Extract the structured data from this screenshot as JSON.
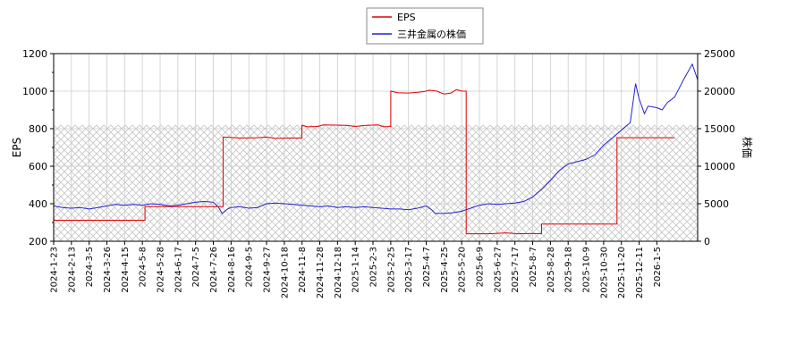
{
  "chart_data": {
    "type": "line",
    "legend": {
      "placement": "top-center",
      "items": [
        {
          "label": "EPS",
          "color": "#dd0000"
        },
        {
          "label": "三井金属の株価",
          "color": "#2222cc"
        }
      ]
    },
    "ylabel_left": "EPS",
    "ylabel_right": "株価",
    "ylim_left": [
      200,
      1200
    ],
    "ylim_right": [
      0,
      25000
    ],
    "yticks_left": [
      "200",
      "400",
      "600",
      "800",
      "1000",
      "1200"
    ],
    "yticks_right": [
      "0",
      "5000",
      "10000",
      "15000",
      "20000",
      "25000"
    ],
    "x_ticks": [
      "2024-1-23",
      "2024-2-13",
      "2024-3-5",
      "2024-3-26",
      "2024-4-15",
      "2024-5-8",
      "2024-5-28",
      "2024-6-17",
      "2024-7-5",
      "2024-7-26",
      "2024-8-16",
      "2024-9-5",
      "2024-9-27",
      "2024-10-18",
      "2024-11-8",
      "2024-11-28",
      "2024-12-18",
      "2025-1-14",
      "2025-2-3",
      "2025-2-25",
      "2025-3-17",
      "2025-4-7",
      "2025-4-25",
      "2025-5-20",
      "2025-6-9",
      "2025-6-27",
      "2025-7-17",
      "2025-8-7",
      "2025-8-28",
      "2025-9-18",
      "2025-10-9",
      "2025-10-30",
      "2025-11-20",
      "2025-12-11",
      "2026-1-5"
    ],
    "grid": true,
    "hatched_band_right": [
      0,
      15500
    ],
    "series": [
      {
        "name": "EPS",
        "axis": "left",
        "color": "#dd0000",
        "points": [
          [
            0,
            312
          ],
          [
            5.15,
            312
          ],
          [
            5.15,
            385
          ],
          [
            9.55,
            385
          ],
          [
            9.55,
            755
          ],
          [
            10.5,
            750
          ],
          [
            11.5,
            752
          ],
          [
            12.0,
            755
          ],
          [
            12.5,
            748
          ],
          [
            13.2,
            750
          ],
          [
            13.99,
            750
          ],
          [
            13.99,
            818
          ],
          [
            14.3,
            810
          ],
          [
            14.9,
            812
          ],
          [
            15.2,
            820
          ],
          [
            16.5,
            818
          ],
          [
            17.0,
            812
          ],
          [
            17.6,
            818
          ],
          [
            18.3,
            820
          ],
          [
            18.6,
            810
          ],
          [
            19.0,
            812
          ],
          [
            19.0,
            1000
          ],
          [
            19.4,
            992
          ],
          [
            20.0,
            990
          ],
          [
            20.6,
            995
          ],
          [
            20.9,
            998
          ],
          [
            21.2,
            1005
          ],
          [
            21.6,
            1000
          ],
          [
            22.0,
            985
          ],
          [
            22.4,
            990
          ],
          [
            22.7,
            1008
          ],
          [
            23.0,
            1000
          ],
          [
            23.25,
            1000
          ],
          [
            23.25,
            240
          ],
          [
            24.5,
            240
          ],
          [
            25.5,
            245
          ],
          [
            26.2,
            240
          ],
          [
            27.0,
            242
          ],
          [
            27.5,
            240
          ],
          [
            27.5,
            292
          ],
          [
            31.75,
            292
          ],
          [
            31.75,
            752
          ],
          [
            35,
            752
          ]
        ]
      },
      {
        "name": "三井金属の株価",
        "axis": "right",
        "color": "#2222cc",
        "points": [
          [
            0,
            4700
          ],
          [
            0.5,
            4500
          ],
          [
            1,
            4400
          ],
          [
            1.5,
            4500
          ],
          [
            2,
            4300
          ],
          [
            2.5,
            4500
          ],
          [
            3,
            4700
          ],
          [
            3.5,
            4900
          ],
          [
            4,
            4800
          ],
          [
            4.5,
            4900
          ],
          [
            5,
            4800
          ],
          [
            5.5,
            5000
          ],
          [
            6,
            4900
          ],
          [
            6.5,
            4700
          ],
          [
            7,
            4800
          ],
          [
            7.5,
            5000
          ],
          [
            8,
            5200
          ],
          [
            8.5,
            5300
          ],
          [
            9,
            5200
          ],
          [
            9.3,
            4500
          ],
          [
            9.5,
            3700
          ],
          [
            9.8,
            4300
          ],
          [
            10,
            4500
          ],
          [
            10.5,
            4600
          ],
          [
            11,
            4400
          ],
          [
            11.5,
            4500
          ],
          [
            12,
            5000
          ],
          [
            12.5,
            5100
          ],
          [
            13,
            5000
          ],
          [
            13.5,
            4900
          ],
          [
            14,
            4800
          ],
          [
            14.5,
            4700
          ],
          [
            15,
            4600
          ],
          [
            15.5,
            4700
          ],
          [
            16,
            4500
          ],
          [
            16.5,
            4600
          ],
          [
            17,
            4500
          ],
          [
            17.5,
            4600
          ],
          [
            18,
            4500
          ],
          [
            18.5,
            4400
          ],
          [
            19,
            4300
          ],
          [
            19.5,
            4300
          ],
          [
            20,
            4200
          ],
          [
            20.5,
            4400
          ],
          [
            21,
            4700
          ],
          [
            21.3,
            4200
          ],
          [
            21.5,
            3700
          ],
          [
            22,
            3700
          ],
          [
            22.5,
            3800
          ],
          [
            23,
            4000
          ],
          [
            23.5,
            4400
          ],
          [
            24,
            4800
          ],
          [
            24.5,
            5000
          ],
          [
            25,
            4900
          ],
          [
            25.5,
            5000
          ],
          [
            26,
            5100
          ],
          [
            26.5,
            5300
          ],
          [
            27,
            5900
          ],
          [
            27.5,
            6900
          ],
          [
            28,
            8100
          ],
          [
            28.5,
            9400
          ],
          [
            29,
            10300
          ],
          [
            29.5,
            10600
          ],
          [
            30,
            10900
          ],
          [
            30.5,
            11500
          ],
          [
            31,
            12800
          ],
          [
            31.5,
            13800
          ],
          [
            32,
            14800
          ],
          [
            32.5,
            15800
          ],
          [
            32.8,
            21000
          ],
          [
            33,
            19000
          ],
          [
            33.3,
            17000
          ],
          [
            33.5,
            18000
          ],
          [
            34,
            17800
          ],
          [
            34.3,
            17500
          ],
          [
            34.6,
            18500
          ],
          [
            35,
            19200
          ],
          [
            35.5,
            21500
          ],
          [
            36,
            23600
          ],
          [
            36.3,
            21500
          ]
        ]
      }
    ]
  }
}
